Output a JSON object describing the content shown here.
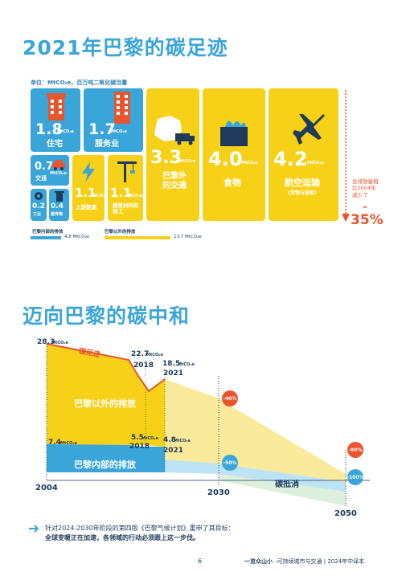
{
  "section1": {
    "title": "2021年巴黎的碳足迹",
    "unit": "单位：MtCO₂e，百万吨二氧化碳当量",
    "mt_unit": "MtCO₂e",
    "tiles": {
      "housing": {
        "value": "1.8",
        "label": "住宅"
      },
      "services": {
        "value": "1.7",
        "label": "服务业"
      },
      "transport": {
        "value": "0.7",
        "label": "交通"
      },
      "industry": {
        "value": "0.2",
        "label": "工业"
      },
      "waste": {
        "value": "0.4",
        "label": "废弃物"
      },
      "energy": {
        "value": "1.1",
        "label": "上游能源"
      },
      "construction": {
        "value": "1.1",
        "label": "建筑材料和施工"
      },
      "external_transport": {
        "value": "3.3",
        "label": "巴黎外的交通"
      },
      "food": {
        "value": "4.0",
        "label": "食物"
      },
      "aviation": {
        "value": "4.2",
        "label": "航空运输",
        "sublabel": "(货物与旅客)"
      }
    },
    "reduction_note": "总排放量相比2004年减少了",
    "reduction_dash": "–",
    "reduction_pct": "35%",
    "legend": {
      "inside_label": "巴黎内部的排放",
      "inside_value": "4,8 MtCO₂e",
      "outside_label": "巴黎以外的排放",
      "outside_value": "13,7 MtCO₂e"
    }
  },
  "section2": {
    "title": "迈向巴黎的碳中和",
    "chart_data": {
      "type": "area",
      "x": [
        2004,
        2018,
        2021,
        2030,
        2050
      ],
      "series": [
        {
          "name": "巴黎以外的排放",
          "values": [
            20.9,
            17.2,
            13.7,
            null,
            null
          ]
        },
        {
          "name": "巴黎内部的排放",
          "values": [
            7.4,
            5.5,
            4.8,
            null,
            null
          ]
        }
      ],
      "total_labels": [
        {
          "year": "2004",
          "value": "28.3"
        },
        {
          "year": "2018",
          "value": "22.7"
        },
        {
          "year": "2021",
          "value": "18.5"
        }
      ],
      "inside_labels": [
        {
          "year": "2004",
          "value": "7.4"
        },
        {
          "year": "2018",
          "value": "5.5"
        },
        {
          "year": "2021",
          "value": "4.8"
        }
      ],
      "footprint_label": "碳足迹",
      "outside_label": "巴黎以外的排放",
      "inside_label": "巴黎内部的排放",
      "offset_label": "碳抵消",
      "mt_unit": "MtCO₂e",
      "axis_years": [
        "2004",
        "2030",
        "2050"
      ],
      "year_2018": "2018",
      "year_2021": "2021",
      "targets": {
        "outside_2030": "-40%",
        "inside_2030": "-50%",
        "outside_2050": "-80%",
        "inside_2050": "-100%"
      }
    },
    "note_line1": "针对2024-2030年阶段的第四版《巴黎气候计划》重申了其目标：",
    "note_line2": "全球变暖正在加速，各领域的行动必须跟上这一步伐。"
  },
  "footer": {
    "page": "6",
    "brand": "一览众山小",
    "tagline": "-可持续城市与交通 | 2024年中译本"
  },
  "colors": {
    "blue": "#3aa5d8",
    "yellow": "#f7d117",
    "red": "#e8552e",
    "navy": "#1f3a5a"
  }
}
